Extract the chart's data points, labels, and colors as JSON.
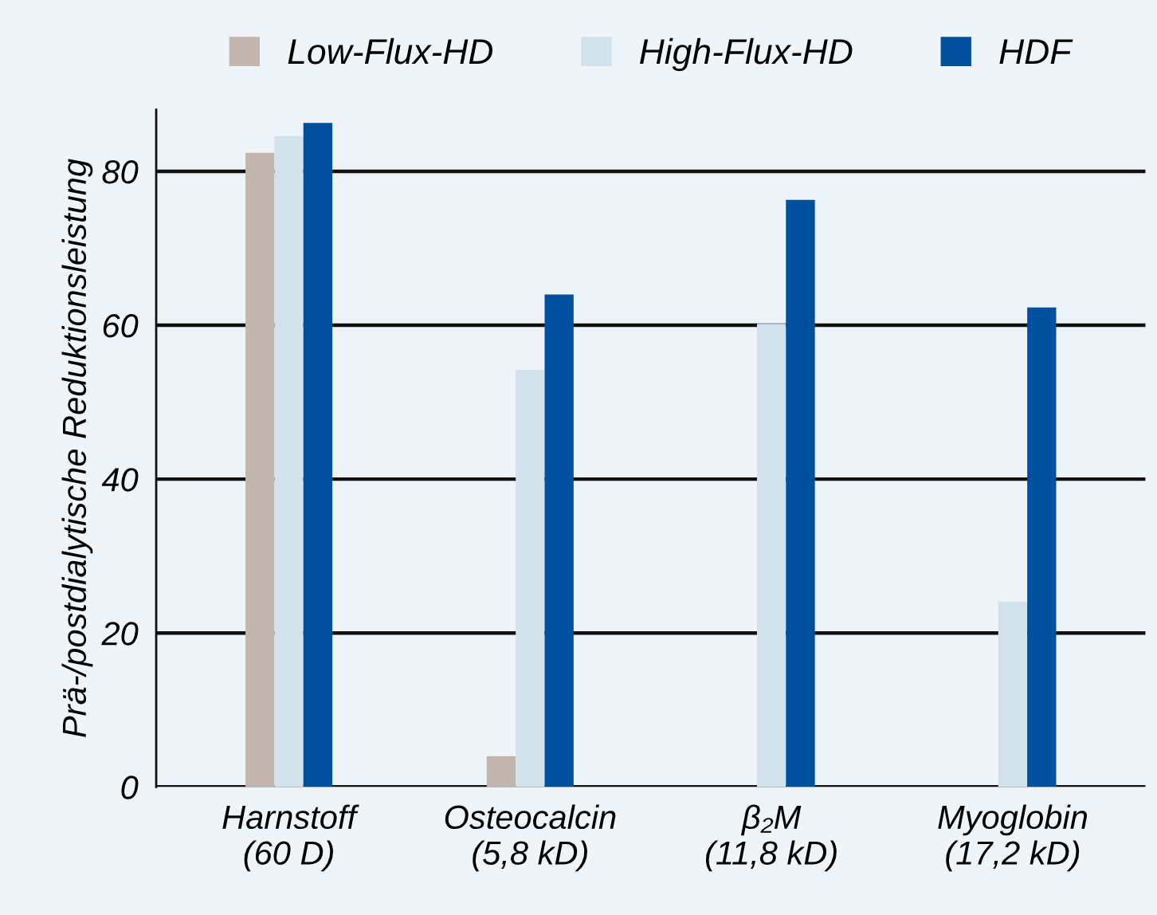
{
  "chart_data": {
    "type": "bar",
    "ylabel": "Prä-/postdialytische Reduktionsleistung",
    "categories": [
      "Harnstoff\n(60 D)",
      "Osteocalcin\n(5,8 kD)",
      "β₂M\n(11,8 kD)",
      "Myoglobin\n(17,2 kD)"
    ],
    "series": [
      {
        "name": "Low-Flux-HD",
        "color": "#c2b5ad",
        "values": [
          82.4,
          4,
          null,
          null
        ]
      },
      {
        "name": "High-Flux-HD",
        "color": "#d2e2ea",
        "values": [
          84.6,
          54.2,
          60.2,
          24.1
        ]
      },
      {
        "name": "HDF",
        "color": "#0050a0",
        "values": [
          86.3,
          64,
          76.3,
          62.3
        ]
      }
    ],
    "ylim": [
      0,
      88
    ],
    "yticks": [
      0,
      20,
      40,
      60,
      80
    ],
    "grid": "y",
    "legend": "top"
  }
}
